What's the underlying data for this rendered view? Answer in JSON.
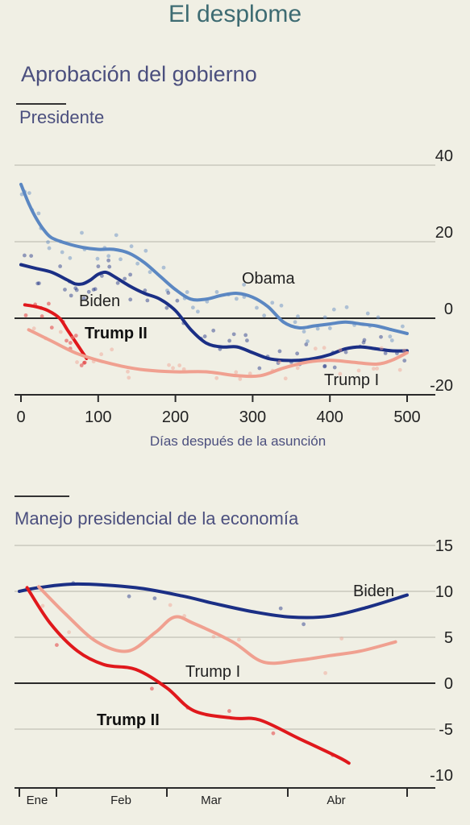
{
  "header": {
    "title": "El desplome",
    "section_title": "Aprobación del gobierno"
  },
  "chart_data": [
    {
      "type": "line",
      "title": "Presidente",
      "xlabel": "Días después de la asunción",
      "ylabel": "",
      "xlim": [
        0,
        520
      ],
      "ylim": [
        -20,
        40
      ],
      "x_ticks": [
        "0",
        "100",
        "200",
        "300",
        "400",
        "500"
      ],
      "y_ticks": [
        "40",
        "20",
        "0",
        "-20"
      ],
      "grid": true,
      "series": [
        {
          "name": "Obama",
          "color": "#5b87c2",
          "x": [
            0,
            10,
            20,
            30,
            40,
            60,
            80,
            100,
            120,
            140,
            160,
            180,
            200,
            220,
            240,
            260,
            280,
            300,
            320,
            340,
            360,
            380,
            400,
            420,
            440,
            460,
            480,
            500
          ],
          "y": [
            35,
            30,
            26,
            23,
            21,
            19.5,
            18.5,
            18,
            18,
            17,
            14.5,
            11,
            7.5,
            5,
            5,
            6,
            6.5,
            5.5,
            3,
            -1,
            -2.5,
            -2,
            -1.5,
            -1,
            -1.5,
            -2,
            -3,
            -4
          ]
        },
        {
          "name": "Biden",
          "color": "#1b2f85",
          "x": [
            0,
            20,
            40,
            60,
            70,
            80,
            90,
            100,
            110,
            120,
            140,
            160,
            180,
            200,
            220,
            240,
            260,
            280,
            300,
            320,
            340,
            360,
            380,
            400,
            420,
            440,
            460,
            480,
            500
          ],
          "y": [
            14,
            13,
            12,
            10,
            9,
            9,
            10,
            11.5,
            12,
            11,
            8.5,
            6.5,
            5,
            2,
            -3,
            -6.5,
            -7.5,
            -7.5,
            -9,
            -10.5,
            -11,
            -11,
            -10.5,
            -9.5,
            -8,
            -7.5,
            -8,
            -8.5,
            -8.5
          ]
        },
        {
          "name": "Trump II",
          "color": "#e0181c",
          "x": [
            5,
            20,
            35,
            50,
            60,
            70,
            80,
            85
          ],
          "y": [
            3.5,
            3,
            2,
            0,
            -3,
            -6,
            -9,
            -10.5
          ]
        },
        {
          "name": "Trump I",
          "color": "#f0a090",
          "x": [
            10,
            40,
            70,
            100,
            130,
            160,
            200,
            240,
            280,
            310,
            340,
            370,
            400,
            430,
            460,
            480,
            500
          ],
          "y": [
            -3,
            -6,
            -9,
            -11,
            -12.5,
            -13.5,
            -14,
            -14,
            -15,
            -15,
            -13,
            -11.5,
            -11,
            -11.5,
            -12,
            -11,
            -9
          ]
        }
      ]
    },
    {
      "type": "line",
      "title": "Manejo presidencial de la economía",
      "xlabel": "",
      "ylabel": "",
      "ylim": [
        -10,
        15
      ],
      "x_ticks": [
        "Ene",
        "Feb",
        "Mar",
        "Abr"
      ],
      "y_ticks": [
        "15",
        "10",
        "5",
        "0",
        "-5",
        "-10"
      ],
      "grid": true,
      "series": [
        {
          "name": "Biden",
          "color": "#1b2f85",
          "x": [
            0,
            0.05,
            0.15,
            0.3,
            0.42,
            0.5,
            0.6,
            0.7,
            0.8,
            0.9,
            1
          ],
          "y": [
            10,
            10.4,
            10.8,
            10.4,
            9.5,
            8.7,
            7.8,
            7.2,
            7.3,
            8.3,
            9.6
          ]
        },
        {
          "name": "Trump I",
          "color": "#f0a090",
          "x": [
            0.05,
            0.12,
            0.2,
            0.28,
            0.35,
            0.4,
            0.45,
            0.55,
            0.63,
            0.72,
            0.8,
            0.88,
            0.97
          ],
          "y": [
            10.5,
            7.5,
            4.5,
            3.5,
            5.5,
            7.2,
            6.5,
            4.5,
            2.3,
            2.5,
            3,
            3.5,
            4.5
          ]
        },
        {
          "name": "Trump II",
          "color": "#e0181c",
          "x": [
            0.02,
            0.08,
            0.15,
            0.22,
            0.3,
            0.38,
            0.45,
            0.55,
            0.62,
            0.72,
            0.82,
            0.85
          ],
          "y": [
            10.4,
            6.5,
            3.5,
            2,
            1.5,
            -0.5,
            -3,
            -3.8,
            -4,
            -6,
            -8,
            -8.7
          ]
        }
      ]
    }
  ]
}
